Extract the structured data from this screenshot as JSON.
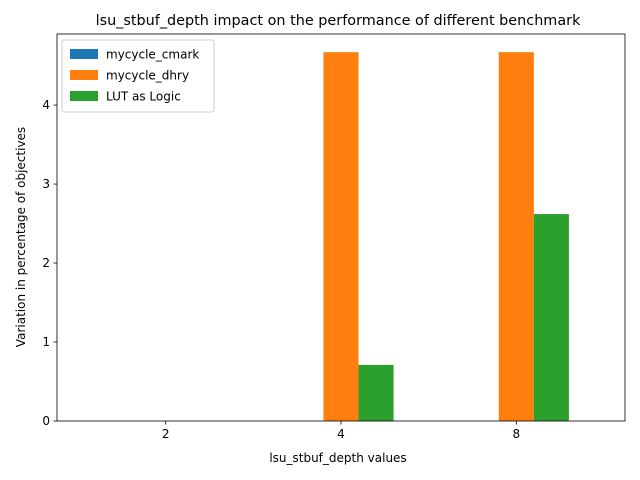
{
  "chart_data": {
    "type": "bar",
    "title": "lsu_stbuf_depth impact on the performance of different benchmark",
    "xlabel": "lsu_stbuf_depth values",
    "ylabel": "Variation in percentage of objectives",
    "categories": [
      "2",
      "4",
      "8"
    ],
    "series": [
      {
        "name": "mycycle_cmark",
        "values": [
          0,
          0,
          0
        ],
        "color": "#1f77b4"
      },
      {
        "name": "mycycle_dhry",
        "values": [
          0,
          4.67,
          4.67
        ],
        "color": "#ff7f0e"
      },
      {
        "name": "LUT as Logic",
        "values": [
          0,
          0.71,
          2.62
        ],
        "color": "#2ca02c"
      }
    ],
    "ylim": [
      0,
      4.9
    ],
    "yticks": [
      0,
      1,
      2,
      3,
      4
    ],
    "grid": false,
    "legend_position": "top-left"
  }
}
